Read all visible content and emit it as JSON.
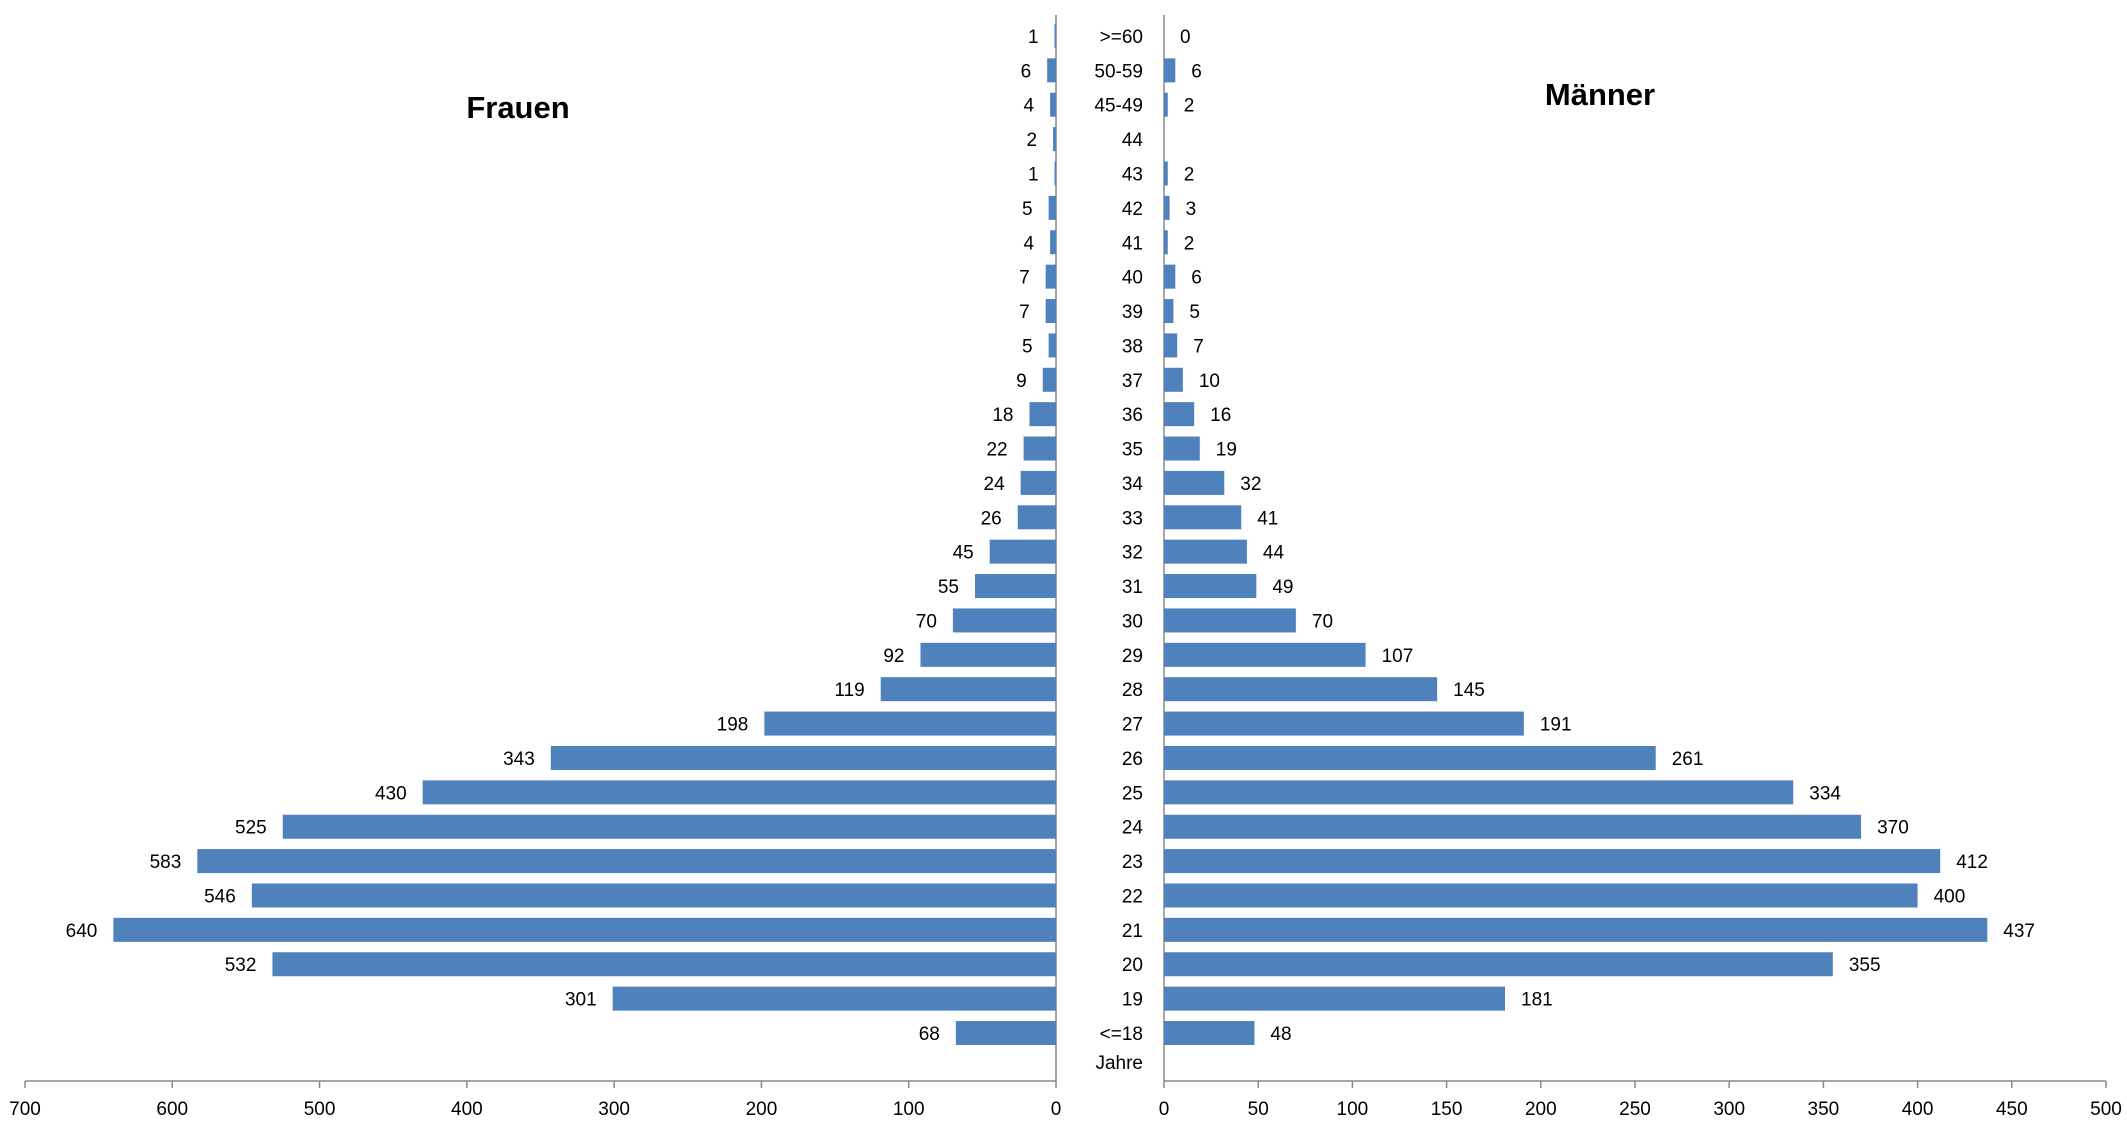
{
  "colors": {
    "bar": "#4F81BD",
    "axis": "#888888"
  },
  "chart_data": [
    {
      "type": "bar",
      "orientation": "horizontal",
      "direction": "left",
      "title": "Frauen",
      "categories": [
        "<=18",
        "19",
        "20",
        "21",
        "22",
        "23",
        "24",
        "25",
        "26",
        "27",
        "28",
        "29",
        "30",
        "31",
        "32",
        "33",
        "34",
        "35",
        "36",
        "37",
        "38",
        "39",
        "40",
        "41",
        "42",
        "43",
        "44",
        "45-49",
        "50-59",
        ">=60"
      ],
      "values": [
        68,
        301,
        532,
        640,
        546,
        583,
        525,
        430,
        343,
        198,
        119,
        92,
        70,
        55,
        45,
        26,
        24,
        22,
        18,
        9,
        5,
        7,
        7,
        4,
        5,
        1,
        2,
        4,
        6,
        1
      ],
      "xlim": [
        0,
        700
      ],
      "ticks": [
        700,
        600,
        500,
        400,
        300,
        200,
        100,
        0
      ]
    },
    {
      "type": "bar",
      "orientation": "horizontal",
      "direction": "right",
      "title": "Männer",
      "axis_label": "Jahre",
      "categories": [
        "<=18",
        "19",
        "20",
        "21",
        "22",
        "23",
        "24",
        "25",
        "26",
        "27",
        "28",
        "29",
        "30",
        "31",
        "32",
        "33",
        "34",
        "35",
        "36",
        "37",
        "38",
        "39",
        "40",
        "41",
        "42",
        "43",
        "44",
        "45-49",
        "50-59",
        ">=60"
      ],
      "values": [
        48,
        181,
        355,
        437,
        400,
        412,
        370,
        334,
        261,
        191,
        145,
        107,
        70,
        49,
        44,
        41,
        32,
        19,
        16,
        10,
        7,
        5,
        6,
        2,
        3,
        2,
        null,
        2,
        6,
        0
      ],
      "xlim": [
        0,
        500
      ],
      "ticks": [
        0,
        50,
        100,
        150,
        200,
        250,
        300,
        350,
        400,
        450,
        500
      ]
    }
  ]
}
